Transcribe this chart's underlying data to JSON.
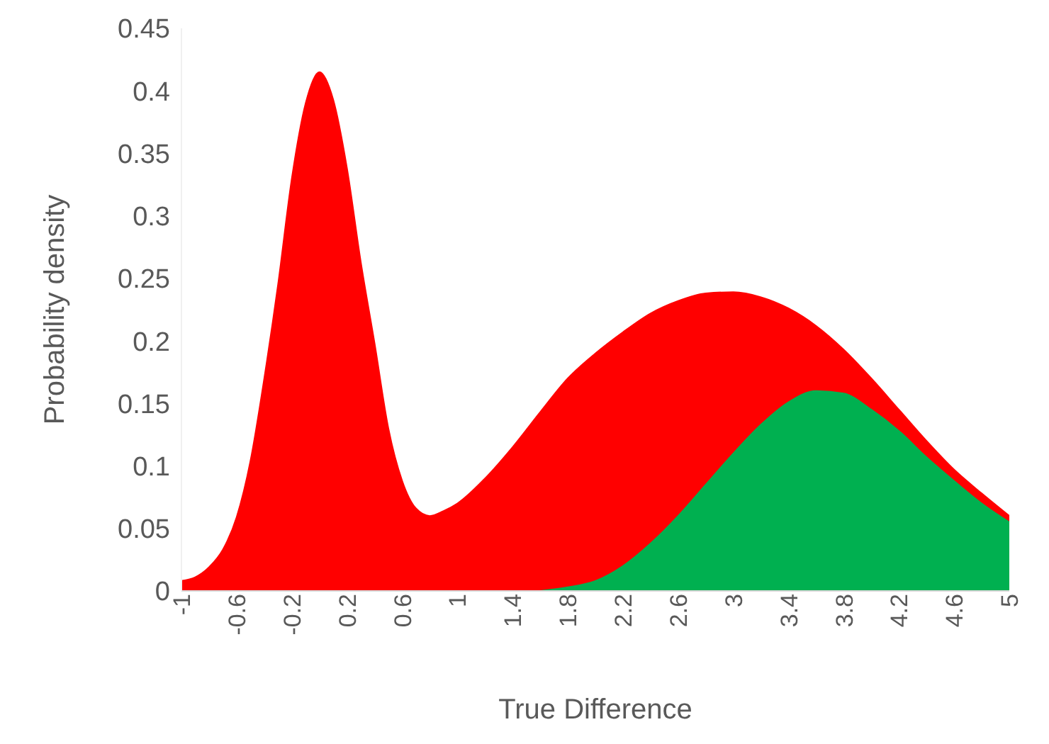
{
  "chart_data": {
    "type": "area",
    "xlabel": "True Difference",
    "ylabel": "Probability density",
    "xlim": [
      -1,
      5
    ],
    "xticks": [
      -1,
      -0.6,
      -0.2,
      0.2,
      0.6,
      1,
      1.4,
      1.8,
      2.2,
      2.6,
      3,
      3.4,
      3.8,
      4.2,
      4.6,
      5
    ],
    "ylim": [
      0,
      0.45
    ],
    "yticks": [
      0,
      0.05,
      0.1,
      0.15,
      0.2,
      0.25,
      0.3,
      0.35,
      0.4,
      0.45
    ],
    "grid": false,
    "legend": false,
    "series": [
      {
        "color": "#ff0000",
        "x": [
          -1,
          -0.9,
          -0.8,
          -0.7,
          -0.6,
          -0.5,
          -0.4,
          -0.3,
          -0.2,
          -0.1,
          0,
          0.1,
          0.2,
          0.3,
          0.4,
          0.5,
          0.6,
          0.7,
          0.8,
          0.9,
          1,
          1.2,
          1.4,
          1.6,
          1.8,
          2,
          2.2,
          2.4,
          2.6,
          2.8,
          3,
          3.2,
          3.4,
          3.6,
          3.8,
          4,
          4.2,
          4.4,
          4.6,
          4.8,
          5
        ],
        "values": [
          0.008,
          0.011,
          0.019,
          0.033,
          0.059,
          0.104,
          0.17,
          0.245,
          0.33,
          0.39,
          0.415,
          0.393,
          0.338,
          0.263,
          0.198,
          0.13,
          0.088,
          0.066,
          0.06,
          0.064,
          0.07,
          0.09,
          0.115,
          0.143,
          0.17,
          0.19,
          0.207,
          0.222,
          0.232,
          0.238,
          0.239,
          0.235,
          0.226,
          0.212,
          0.193,
          0.17,
          0.145,
          0.12,
          0.097,
          0.078,
          0.06
        ]
      },
      {
        "color": "#00b050",
        "x": [
          1.6,
          1.8,
          2,
          2.2,
          2.4,
          2.6,
          2.8,
          3,
          3.2,
          3.4,
          3.6,
          3.8,
          4,
          4.2,
          4.4,
          4.6,
          4.8,
          5
        ],
        "values": [
          0,
          0.003,
          0.008,
          0.02,
          0.038,
          0.06,
          0.085,
          0.11,
          0.133,
          0.151,
          0.16,
          0.158,
          0.145,
          0.128,
          0.107,
          0.088,
          0.07,
          0.055
        ]
      }
    ]
  }
}
